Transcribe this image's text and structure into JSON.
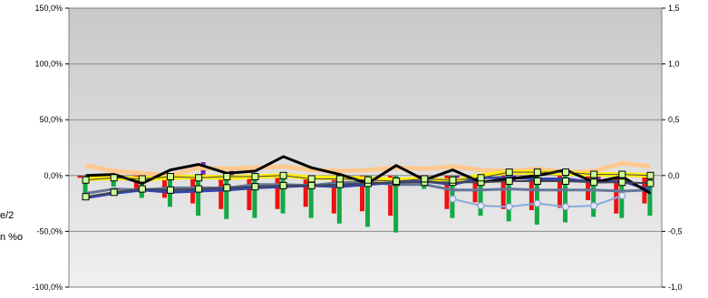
{
  "chart_data": {
    "type": "bar",
    "title": "",
    "xlabel": "",
    "ylabel": "",
    "ylim": [
      -1.0,
      1.5
    ],
    "y2lim": [
      -1.0,
      1.5
    ],
    "grid": true,
    "y_ticks": [
      "-100,0%",
      "-50,0%",
      "0,0%",
      "50,0%",
      "100,0%",
      "150,0%"
    ],
    "y2_ticks": [
      "-1,0",
      "-0,5",
      "0,0",
      "0,5",
      "1,0",
      "1,5"
    ],
    "side_labels": [
      "e/2",
      "n %o"
    ],
    "colors": {
      "red": "#ee1111",
      "green": "#11aa44",
      "purple": "#7722bb",
      "yellow": "#ffee00",
      "peach": "#ffc890",
      "black": "#000000",
      "navy": "#3344aa",
      "slate": "#667799",
      "lightblue": "#88aadd",
      "marker": "#ccff99"
    },
    "bar_groups": [
      {
        "red": -0.02,
        "green": -0.18,
        "purple": 0.0
      },
      {
        "red": -0.03,
        "green": -0.1,
        "purple": 0.0
      },
      {
        "red": -0.13,
        "green": -0.2,
        "purple": 0.0
      },
      {
        "red": -0.2,
        "green": -0.28,
        "purple": 0.0
      },
      {
        "red": -0.25,
        "green": -0.36,
        "purple": 0.12
      },
      {
        "red": -0.3,
        "green": -0.39,
        "purple": 0.06
      },
      {
        "red": -0.31,
        "green": -0.38,
        "purple": 0.0
      },
      {
        "red": -0.3,
        "green": -0.34,
        "purple": 0.0
      },
      {
        "red": -0.28,
        "green": -0.38,
        "purple": 0.0
      },
      {
        "red": -0.34,
        "green": -0.43,
        "purple": 0.0
      },
      {
        "red": -0.32,
        "green": -0.46,
        "purple": 0.0
      },
      {
        "red": -0.36,
        "green": -0.51,
        "purple": 0.0
      },
      {
        "red": -0.02,
        "green": -0.12,
        "purple": 0.0
      },
      {
        "red": -0.3,
        "green": -0.38,
        "purple": -0.05
      },
      {
        "red": -0.24,
        "green": -0.36,
        "purple": 0.0
      },
      {
        "red": -0.3,
        "green": -0.41,
        "purple": -0.05
      },
      {
        "red": -0.31,
        "green": -0.44,
        "purple": 0.0
      },
      {
        "red": -0.29,
        "green": -0.42,
        "purple": 0.0
      },
      {
        "red": -0.22,
        "green": -0.37,
        "purple": -0.05
      },
      {
        "red": -0.34,
        "green": -0.38,
        "purple": 0.0
      },
      {
        "red": -0.25,
        "green": -0.36,
        "purple": 0.0
      }
    ],
    "line_series": [
      {
        "color": "peach",
        "width": 5,
        "values": [
          0.09,
          0.04,
          0.02,
          0.0,
          0.07,
          0.06,
          0.07,
          0.08,
          0.05,
          0.04,
          0.05,
          0.07,
          0.06,
          0.08,
          0.05,
          0.04,
          0.06,
          0.03,
          0.04,
          0.11,
          0.08
        ]
      },
      {
        "color": "yellow",
        "width": 5,
        "values": [
          -0.03,
          -0.02,
          -0.03,
          -0.02,
          -0.01,
          -0.02,
          -0.01,
          0.0,
          -0.02,
          -0.02,
          -0.03,
          -0.04,
          -0.03,
          -0.05,
          0.0,
          0.03,
          0.03,
          0.02,
          0.01,
          0.01,
          0.0
        ]
      },
      {
        "color": "lightblue",
        "width": 2,
        "markers": "circle",
        "start": 13,
        "values": [
          -0.21,
          -0.27,
          -0.28,
          -0.25,
          -0.28,
          -0.27,
          -0.18
        ]
      },
      {
        "color": "slate",
        "width": 3,
        "values": [
          -0.16,
          -0.12,
          -0.13,
          -0.11,
          -0.11,
          -0.11,
          -0.08,
          -0.08,
          -0.09,
          -0.06,
          -0.06,
          -0.08,
          -0.08,
          -0.13,
          -0.13,
          -0.12,
          -0.13,
          -0.13,
          -0.13,
          -0.14,
          -0.13
        ]
      },
      {
        "color": "navy",
        "width": 3,
        "values": [
          -0.2,
          -0.16,
          -0.13,
          -0.15,
          -0.14,
          -0.13,
          -0.11,
          -0.1,
          -0.09,
          -0.1,
          -0.08,
          -0.06,
          -0.05,
          -0.08,
          -0.02,
          -0.02,
          -0.03,
          -0.03,
          -0.06,
          -0.05,
          -0.13
        ]
      },
      {
        "color": "black",
        "width": 3,
        "values": [
          0.0,
          0.01,
          -0.07,
          0.05,
          0.1,
          0.02,
          0.04,
          0.17,
          0.07,
          0.01,
          -0.07,
          0.09,
          -0.04,
          0.05,
          -0.06,
          -0.03,
          0.0,
          0.05,
          -0.06,
          -0.01,
          -0.16
        ]
      },
      {
        "color": "darkslate",
        "width": 2,
        "markers": "square",
        "values": [
          -0.19,
          -0.15,
          -0.12,
          -0.13,
          -0.12,
          -0.11,
          -0.1,
          -0.09,
          -0.09,
          -0.08,
          -0.07,
          -0.06,
          -0.06,
          -0.06,
          -0.06,
          -0.05,
          -0.05,
          -0.05,
          -0.06,
          -0.06,
          -0.07
        ]
      },
      {
        "color": "darkslate",
        "width": 1,
        "markers": "square",
        "values": [
          -0.04,
          -0.02,
          -0.03,
          -0.01,
          -0.02,
          -0.01,
          -0.01,
          0.0,
          -0.03,
          -0.03,
          -0.04,
          -0.05,
          -0.03,
          -0.04,
          -0.02,
          0.03,
          0.03,
          0.03,
          0.01,
          0.01,
          0.0
        ]
      }
    ]
  }
}
